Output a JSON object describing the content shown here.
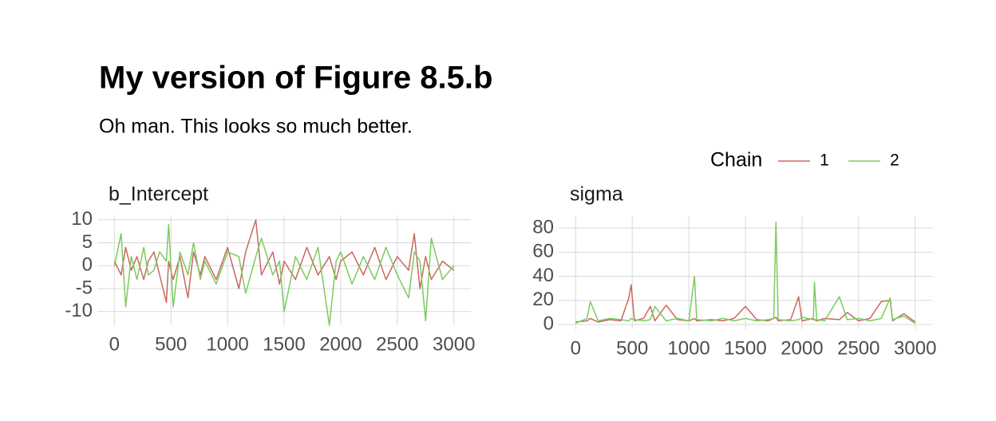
{
  "title": "My version of Figure 8.5.b",
  "subtitle": "Oh man. This looks so much better.",
  "legend_title": "Chain",
  "chart_data": [
    {
      "type": "line",
      "title": "b_Intercept",
      "x": [
        0,
        60,
        100,
        150,
        200,
        260,
        300,
        350,
        400,
        460,
        480,
        520,
        580,
        650,
        700,
        760,
        800,
        900,
        1000,
        1100,
        1160,
        1250,
        1300,
        1400,
        1460,
        1500,
        1600,
        1700,
        1800,
        1900,
        1960,
        2000,
        2100,
        2200,
        2300,
        2400,
        2500,
        2600,
        2650,
        2700,
        2750,
        2800,
        2900,
        3000
      ],
      "series": [
        {
          "name": "1",
          "color": "#c9685f",
          "values": [
            1,
            -2,
            4,
            -1,
            2,
            -3,
            1,
            3,
            -2,
            -8,
            1,
            -3,
            2,
            -7,
            3,
            -2,
            2,
            -3,
            4,
            -5,
            3,
            10,
            -2,
            3,
            -4,
            1,
            -3,
            4,
            -2,
            2,
            -3,
            1,
            3,
            -2,
            4,
            -3,
            2,
            -1,
            7,
            -5,
            2,
            -3,
            1,
            -1
          ]
        },
        {
          "name": "2",
          "color": "#7ccb5e",
          "values": [
            0,
            7,
            -9,
            2,
            -3,
            4,
            -2,
            -1,
            3,
            1,
            9,
            -9,
            3,
            -2,
            5,
            -3,
            1,
            -4,
            3,
            2,
            -6,
            2,
            6,
            -2,
            1,
            -10,
            2,
            -3,
            4,
            -13,
            1,
            3,
            -4,
            2,
            -3,
            4,
            -2,
            -7,
            3,
            1,
            -12,
            6,
            -3,
            0
          ]
        }
      ],
      "xlim": [
        -150,
        3150
      ],
      "xticks": [
        0,
        500,
        1000,
        1500,
        2000,
        2500,
        3000
      ],
      "ylim": [
        -13,
        11
      ],
      "yticks": [
        10,
        5,
        0,
        -5,
        -10
      ],
      "grid": true
    },
    {
      "type": "line",
      "title": "sigma",
      "x": [
        0,
        100,
        130,
        200,
        300,
        400,
        470,
        490,
        520,
        600,
        660,
        700,
        800,
        900,
        1000,
        1050,
        1070,
        1200,
        1300,
        1400,
        1500,
        1600,
        1700,
        1750,
        1770,
        1790,
        1900,
        1970,
        2000,
        2100,
        2110,
        2130,
        2200,
        2330,
        2400,
        2500,
        2600,
        2700,
        2780,
        2800,
        2900,
        3000
      ],
      "series": [
        {
          "name": "1",
          "color": "#c9685f",
          "values": [
            2,
            3,
            5,
            2,
            4,
            3,
            22,
            33,
            3,
            5,
            15,
            3,
            16,
            4,
            3,
            5,
            3,
            4,
            3,
            5,
            15,
            4,
            3,
            5,
            6,
            3,
            4,
            23,
            3,
            5,
            4,
            3,
            5,
            4,
            10,
            3,
            5,
            19,
            20,
            3,
            9,
            2
          ]
        },
        {
          "name": "2",
          "color": "#7ccb5e",
          "values": [
            1,
            5,
            19,
            3,
            5,
            4,
            3,
            5,
            4,
            3,
            4,
            15,
            3,
            5,
            3,
            40,
            4,
            3,
            5,
            3,
            5,
            3,
            4,
            5,
            85,
            4,
            3,
            4,
            6,
            4,
            35,
            4,
            3,
            23,
            4,
            5,
            3,
            5,
            22,
            4,
            7,
            1
          ]
        }
      ],
      "xlim": [
        -150,
        3150
      ],
      "xticks": [
        0,
        500,
        1000,
        1500,
        2000,
        2500,
        3000
      ],
      "ylim": [
        -4,
        90
      ],
      "yticks": [
        0,
        20,
        40,
        60,
        80
      ],
      "grid": true
    }
  ]
}
